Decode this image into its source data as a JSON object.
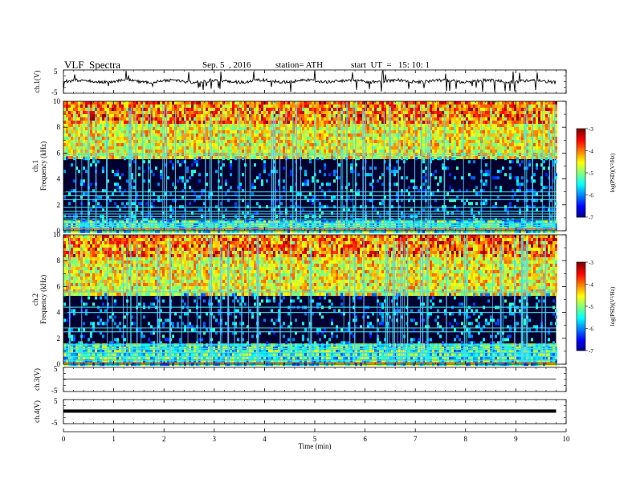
{
  "header": {
    "title": "VLF  Spectra",
    "date": "Sep. 5  , 2016",
    "station": "station= ATH",
    "start_ut": "start  UT  =   15: 10: 1"
  },
  "chart_data": [
    {
      "type": "line",
      "panel": "ch1-waveform",
      "ylabel": "ch.1(V)",
      "ytick_labels": [
        "5",
        "-5"
      ],
      "ylim": [
        -5,
        5
      ],
      "series": [
        {
          "values_description_level": 0.2
        }
      ],
      "trace_level": 0.2
    },
    {
      "type": "heatmap",
      "panel": "ch1-spectrogram",
      "ylabel_top": "ch.1",
      "ylabel": "Frequency (kHz)",
      "ylim": [
        0,
        10
      ],
      "yticks": [
        "0",
        "2",
        "4",
        "6",
        "8",
        "10"
      ],
      "colorbar_label": "log(PSD)(V²/Hz)",
      "colorbar_range": [
        -7,
        -3
      ],
      "colorbar_ticks": [
        "-3",
        "-4",
        "-5",
        "-6",
        "-7"
      ],
      "quiet_band_khz": [
        0.8,
        5.7
      ],
      "lines_khz": [
        5.9,
        3.0,
        2.7,
        2.4,
        1.8,
        1.5,
        1.3,
        1.1,
        0.9,
        0.6,
        0.4,
        0.2
      ]
    },
    {
      "type": "heatmap",
      "panel": "ch2-spectrogram",
      "ylabel_top": "ch.2",
      "ylabel": "Frequency (kHz)",
      "ylim": [
        0,
        10
      ],
      "yticks": [
        "0",
        "2",
        "4",
        "6",
        "8",
        "10"
      ],
      "colorbar_label": "log(PSD)(V²/Hz)",
      "colorbar_range": [
        -7,
        -3
      ],
      "colorbar_ticks": [
        "-3",
        "-4",
        "-5",
        "-6",
        "-7"
      ],
      "quiet_band_khz": [
        1.6,
        5.5
      ],
      "lines_khz": [
        5.6,
        4.4,
        4.0,
        2.8,
        2.5,
        1.5,
        1.2,
        0.9,
        0.6,
        0.3
      ]
    },
    {
      "type": "line",
      "panel": "ch3-waveform",
      "ylabel": "ch.3(V)",
      "ytick_labels": [
        "5",
        "-5"
      ],
      "ylim": [
        -5,
        5
      ],
      "trace_level": 0.2
    },
    {
      "type": "line",
      "panel": "ch4-waveform",
      "ylabel": "ch.4(V)",
      "ytick_labels": [
        "5",
        "-5"
      ],
      "ylim": [
        -5,
        5
      ],
      "trace_level": 0.2
    }
  ],
  "xaxis": {
    "label": "Time  (min)",
    "xlim": [
      0,
      10
    ],
    "ticks": [
      "0",
      "1",
      "2",
      "3",
      "4",
      "5",
      "6",
      "7",
      "8",
      "9",
      "10"
    ],
    "data_end_min": 9.8
  },
  "colors": {
    "background": "#000030",
    "quiet": "#000a55",
    "cyan_line": "#40e0f0",
    "green": "#33dd33",
    "red": "#ee2020"
  }
}
